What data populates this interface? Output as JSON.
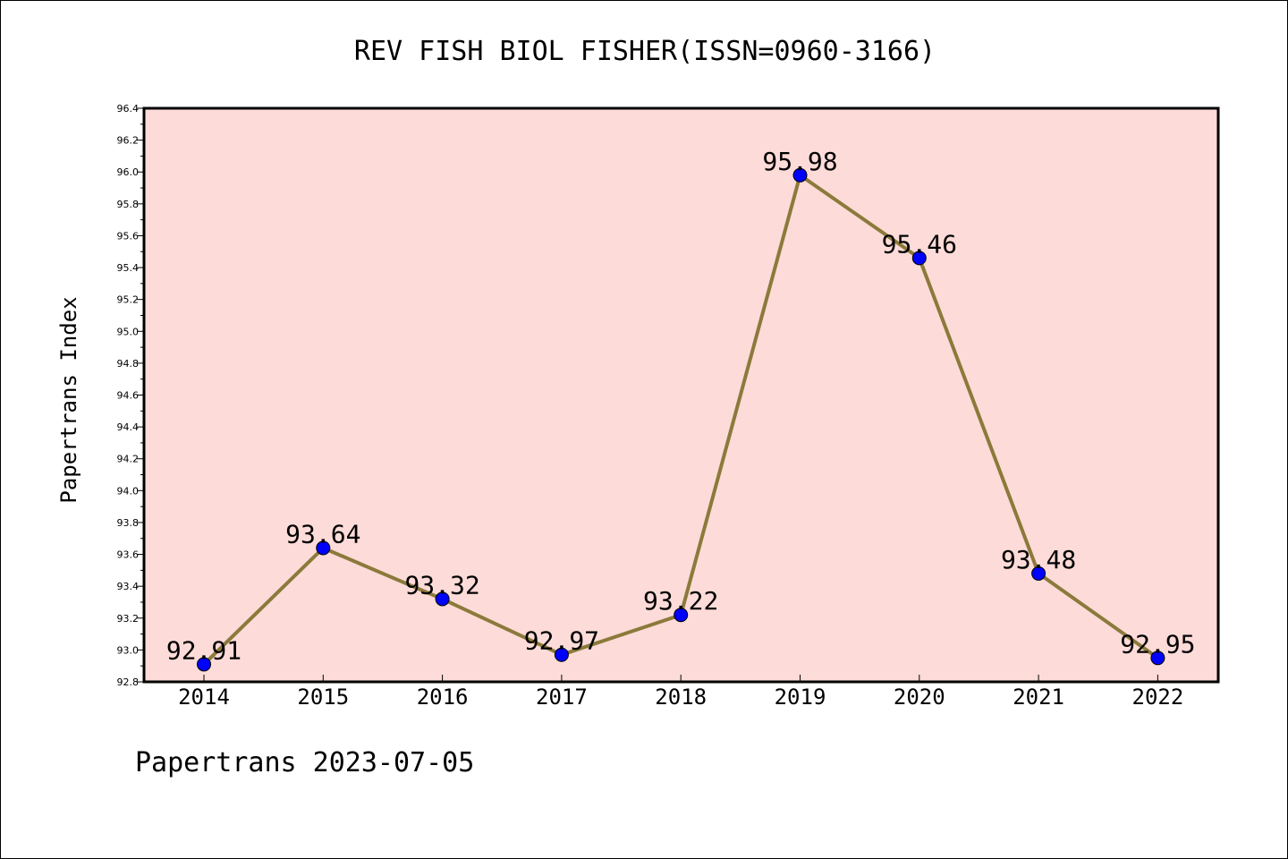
{
  "chart_data": {
    "type": "line",
    "title": "REV FISH BIOL FISHER(ISSN=0960-3166)",
    "xlabel": "",
    "ylabel": "Papertrans Index",
    "categories": [
      "2014",
      "2015",
      "2016",
      "2017",
      "2018",
      "2019",
      "2020",
      "2021",
      "2022"
    ],
    "series": [
      {
        "values": [
          92.91,
          93.64,
          93.32,
          92.97,
          93.22,
          95.98,
          95.46,
          93.48,
          92.95
        ]
      }
    ],
    "data_labels": [
      "92.91",
      "93.64",
      "93.32",
      "92.97",
      "93.22",
      "95.98",
      "95.46",
      "93.48",
      "92.95"
    ],
    "ylim": [
      92.8,
      96.4
    ],
    "yticks": [
      "92.8",
      "93.0",
      "93.2",
      "93.4",
      "93.6",
      "93.8",
      "94.0",
      "94.2",
      "94.4",
      "94.6",
      "94.8",
      "95.0",
      "95.2",
      "95.4",
      "95.6",
      "95.8",
      "96.0",
      "96.2",
      "96.4"
    ],
    "grid": false,
    "colors": {
      "plot_background": "#fddbd9",
      "line": "#8b7a3a",
      "marker": "#0000ff"
    }
  },
  "footer": "Papertrans 2023-07-05"
}
